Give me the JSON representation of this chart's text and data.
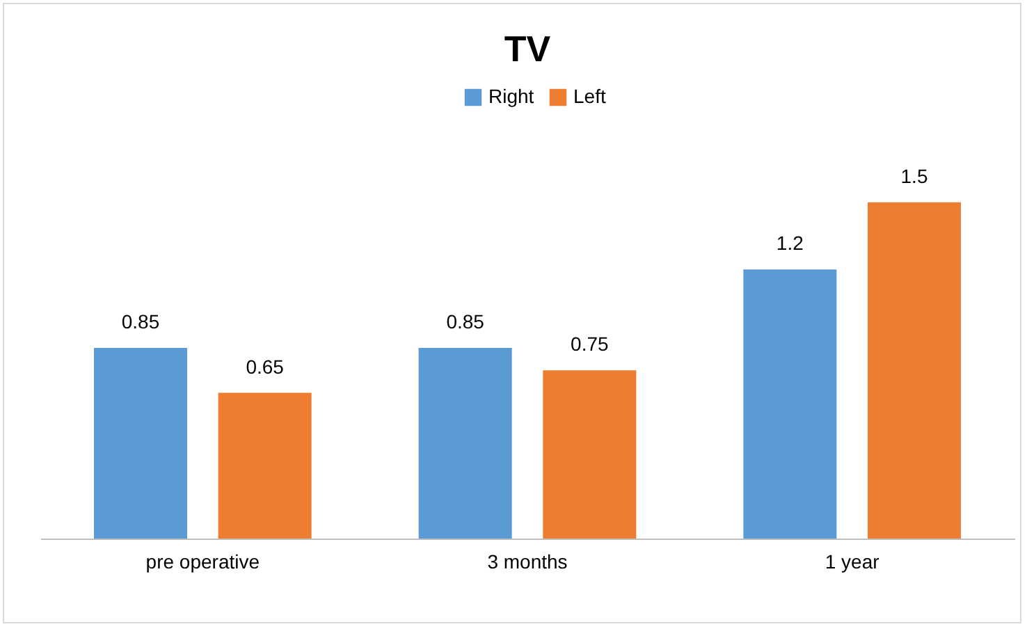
{
  "chart_data": {
    "type": "bar",
    "title": "TV",
    "categories": [
      "pre operative",
      "3 months",
      "1 year"
    ],
    "series": [
      {
        "name": "Right",
        "color": "#5b9bd5",
        "values": [
          0.85,
          0.85,
          1.2
        ]
      },
      {
        "name": "Left",
        "color": "#ed7d31",
        "values": [
          0.65,
          0.75,
          1.5
        ]
      }
    ],
    "data_labels": true,
    "legend": "top"
  }
}
